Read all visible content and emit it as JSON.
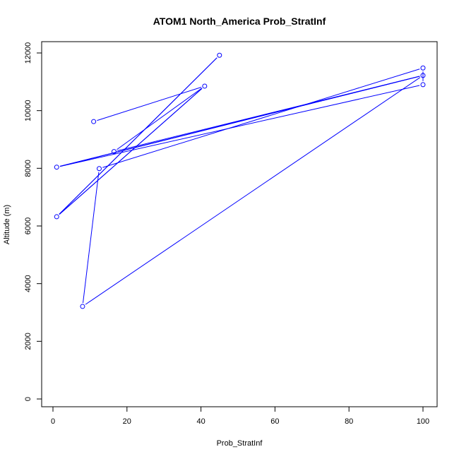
{
  "chart_data": {
    "type": "line",
    "title": "ATOM1 North_America Prob_StratInf",
    "xlabel": "Prob_StratInf",
    "ylabel": "Altitude (m)",
    "xlim": [
      0,
      100
    ],
    "ylim": [
      0,
      12000
    ],
    "x_ticks": [
      0,
      20,
      40,
      60,
      80,
      100
    ],
    "y_ticks": [
      0,
      2000,
      4000,
      6000,
      8000,
      10000,
      12000
    ],
    "grid": false,
    "color": "#0000ff",
    "series": [
      {
        "x": [
          11,
          41,
          1,
          45,
          1,
          41,
          16.5,
          100,
          8,
          12.5,
          100,
          100
        ],
        "y": [
          9620,
          10850,
          6320,
          11920,
          6320,
          10850,
          8580,
          11220,
          3210,
          7990,
          11480,
          10900
        ]
      },
      {
        "x": [
          1,
          100,
          1,
          100,
          1,
          100
        ],
        "y": [
          8040,
          11220,
          8040,
          11220,
          8040,
          10900
        ]
      }
    ]
  }
}
